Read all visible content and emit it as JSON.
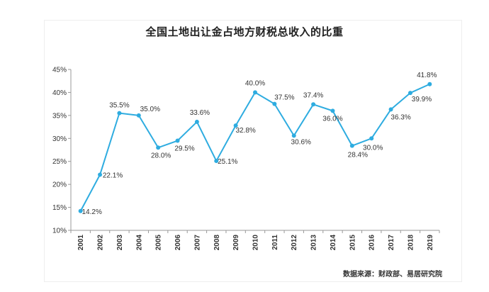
{
  "chart_data": {
    "type": "line",
    "title": "全国土地出让金占地方财税总收入的比重",
    "source": "数据来源：财政部、易居研究院",
    "x": [
      "2001",
      "2002",
      "2003",
      "2004",
      "2005",
      "2006",
      "2007",
      "2008",
      "2009",
      "2010",
      "2011",
      "2012",
      "2013",
      "2014",
      "2015",
      "2016",
      "2017",
      "2018",
      "2019"
    ],
    "series": [
      {
        "values": [
          14.2,
          22.1,
          35.5,
          35.0,
          28.0,
          29.5,
          33.6,
          25.1,
          32.8,
          40.0,
          37.5,
          30.6,
          37.4,
          36.0,
          28.4,
          30.0,
          36.3,
          39.9,
          41.8
        ],
        "labels": [
          "14.2%",
          "22.1%",
          "35.5%",
          "35.0%",
          "28.0%",
          "29.5%",
          "33.6%",
          "25.1%",
          "32.8%",
          "40.0%",
          "37.5%",
          "30.6%",
          "37.4%",
          "36.0%",
          "28.4%",
          "30.0%",
          "36.3%",
          "39.9%",
          "41.8%"
        ]
      }
    ],
    "ylim": [
      10,
      45
    ],
    "yticks": [
      "10%",
      "15%",
      "20%",
      "25%",
      "30%",
      "35%",
      "40%",
      "45%"
    ],
    "grid": false,
    "colors": {
      "line": "#2EACE0",
      "axis": "#999999"
    }
  }
}
